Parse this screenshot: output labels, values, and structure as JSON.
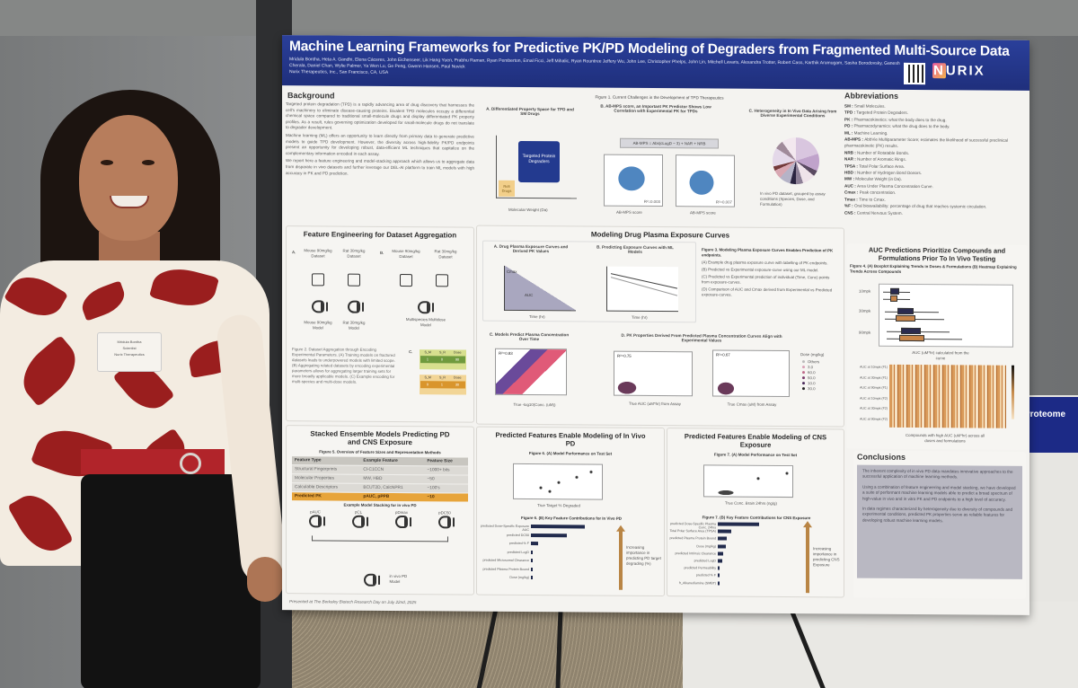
{
  "scene": {
    "description": "Presenter standing next to a scientific research poster at a poster session",
    "name_badge": {
      "line1": "Mridula Bontha",
      "line2": "Scientist",
      "line3": "Nurix Therapeutics"
    },
    "adjacent_poster": {
      "banner_text": "Proteome"
    }
  },
  "poster": {
    "title": "Machine Learning Frameworks for Predictive PK/PD Modeling of Degraders from Fragmented Multi-Source Data",
    "authors": "Mridula Bontha, Heta A. Gandhi, Elena Cáceres, John Eichenseer, Lik Hang Yuen, Prabhu Raman, Ryan Pemberton, Emal Ficci, Jeff Mihalic, Ryan Rountree Jeffery Wu, John Lee, Christopher Phelps, John Lin, Mitchell Lavaris, Alexandra Trotter, Robert Cass, Karthik Arumugam, Sasha Borodovsky, Ganesh Cherala, Daniel Chan, Wylie Palmer, Ya Wen Lu, Ge Peng, Gwenn Hansen, Paul Novick",
    "affiliation": "Nurix Therapeutics, Inc., San Francisco, CA, USA",
    "logo": {
      "mark": "N",
      "rest": "URIX"
    },
    "footer": "Presented at The Berkeley Biotech Research Day on July 22nd, 2025",
    "background": {
      "heading": "Background",
      "paragraphs": [
        "Targeted protein degradation (TPD) is a rapidly advancing area of drug discovery that harnesses the cell's machinery to eliminate disease-causing proteins. Bivalent TPD molecules occupy a differential chemical space compared to traditional small-molecule drugs and display differentiated PK property profiles. As a result, rules governing optimization developed for small-molecule drugs do not translate to degrader development.",
        "Machine learning (ML) offers an opportunity to learn directly from primary data to generate predictive models to guide TPD development. However, the diversity across high-fidelity PK/PD endpoints present an opportunity for developing robust, data-efficient ML techniques that capitalize on the complementary information encoded in each assay.",
        "We report here a feature engineering and model-stacking approach which allows us to aggregate data from disparate in vivo datasets and further leverage our DEL-AI platform to train ML models with high accuracy in PK and PD prediction."
      ]
    },
    "figure1": {
      "caption": "Figure 1. Current Challenges in the Development of TPD Therapeutics",
      "panel_a": {
        "title": "A. Differentiated Property Space for TPD and SM Drugs",
        "box_tpd": "Targeted Protein Degraders",
        "box_ro5": "Ro5 Drugs",
        "xlabel": "Molecular Weight (Da)",
        "ylabel": "Polar Surface Area (Å²)",
        "xticks": [
          "0",
          "500",
          "1000",
          "1500"
        ],
        "yticks": [
          "100",
          "200",
          "300",
          "400"
        ]
      },
      "panel_b": {
        "title": "B. AB-MPS score, an Important PK Predictor Shows Low Correlation with Experimental PK for TPDs",
        "formula": "AB-MPS = Abs(cLogD − 3) + NAR + NRB",
        "plot1": {
          "ylabel": "log10(Plasma AUC (uM*hr))",
          "xlabel": "AB-MPS score",
          "r2": "R²=0.003"
        },
        "plot2": {
          "ylabel": "log10(Plasma Cmax (uM))",
          "xlabel": "AB-MPS score",
          "r2": "R²=0.007"
        },
        "xticks": [
          "10",
          "15",
          "20",
          "25",
          "30",
          "35"
        ]
      },
      "panel_c": {
        "title": "C. Heterogeneity in In Vivo Data Arising from Diverse Experimental Conditions",
        "note": "In vivo PD dataset, grouped by assay conditions (Species, Dose, and Formulation)"
      }
    },
    "abbreviations": {
      "heading": "Abbreviations",
      "items": [
        {
          "k": "SM",
          "v": "Small Molecules."
        },
        {
          "k": "TPD",
          "v": "Targeted Protein Degraders."
        },
        {
          "k": "PK",
          "v": "Pharmacokinetics: what the body does to the drug."
        },
        {
          "k": "PD",
          "v": "Pharmacodynamics: what the drug does to the body."
        },
        {
          "k": "ML",
          "v": "Machine Learning."
        },
        {
          "k": "AB-MPS",
          "v": "AbbVie Multiparameter Score; estimates the likelihood of successful preclinical pharmacokinetic (PK) results."
        },
        {
          "k": "NRB",
          "v": "Number of Rotatable Bonds."
        },
        {
          "k": "NAR",
          "v": "Number of Aromatic Rings."
        },
        {
          "k": "TPSA",
          "v": "Total Polar Surface Area."
        },
        {
          "k": "HBD",
          "v": "Number of Hydrogen Bond Donors."
        },
        {
          "k": "MW",
          "v": "Molecular Weight (in Da)."
        },
        {
          "k": "AUC",
          "v": "Area Under Plasma Concentration Curve."
        },
        {
          "k": "Cmax",
          "v": "Peak concentration."
        },
        {
          "k": "Tmax",
          "v": "Time to Cmax."
        },
        {
          "k": "%F",
          "v": "Oral bioavailability: percentage of drug that reaches systemic circulation."
        },
        {
          "k": "CNS",
          "v": "Central Nervous System."
        }
      ]
    },
    "feature_engineering": {
      "heading": "Feature Engineering for Dataset Aggregation",
      "panel_a_label": "A.",
      "panel_b_label": "B.",
      "panel_c_label": "C.",
      "datasets": [
        "Mouse 90mg/kg Dataset",
        "Rat 30mg/kg Dataset",
        "Mouse 90mg/kg Dataset",
        "Rat 30mg/kg Dataset"
      ],
      "models": [
        "Mouse 90mg/kg Model",
        "Rat 30mg/kg Model",
        "Multispecies Multidose Model"
      ],
      "encoding_headers": [
        "S_M",
        "S_R",
        "Dose"
      ],
      "encoding_rows": [
        [
          "1",
          "0",
          "90"
        ],
        [
          "0",
          "1",
          "30"
        ]
      ],
      "caption": "Figure 2. Dataset Aggregation through Encoding Experimental Parameters. (A) Training models on fractured datasets leads to underpowered models with limited scope. (B) Aggregating related datasets by encoding experimental parameters allows for aggregating larger training sets for more broadly applicable models. (C) Example encoding for multi-species and multi-dose models."
    },
    "plasma": {
      "heading": "Modeling Drug Plasma Exposure Curves",
      "panel_a": {
        "title": "A. Drug Plasma Exposure Curves and Derived PK Values",
        "ylabel": "Conc. of compound in Plasma (uM)",
        "xlabel": "Time (hr)",
        "auc_label": "AUC",
        "cmax_label": "Cmax",
        "tmax_label": "Tmax",
        "xticks": [
          "2",
          "6",
          "24"
        ]
      },
      "panel_b": {
        "title": "B. Predicting Exposure Curves with ML Models",
        "ylabel": "Concentration (uM)",
        "xlabel": "Time (hr)",
        "legend": [
          "Predicted",
          "True"
        ],
        "xticks": [
          "2",
          "6",
          "24"
        ]
      },
      "caption_title": "Figure 3. Modeling Plasma Exposure Curves Enables Prediction of PK endpoints.",
      "caption_items": [
        "(A) Example drug plasma exposure curve with labelling of PK endpoints.",
        "(B) Predicted vs Experimental exposure-curve using our ML model.",
        "(C) Predicted vs Experimental prediction of individual (Time, Conc) points from exposure-curves.",
        "(D) Comparison of AUC and Cmax derived from Experimental vs Predicted exposure-curves."
      ],
      "panel_c": {
        "title": "C. Models Predict Plasma Concentration Over Time",
        "r2": "R²=0.83",
        "xlabel": "True -log10(Conc. (uM))",
        "ylabel": "Predicted -log10(Conc. (uM))",
        "xticks": [
          "5",
          "6",
          "7",
          "8",
          "9"
        ]
      },
      "panel_d": {
        "title": "D. PK Properties Derived From Predicted Plasma Concentration Curves Align with Experimental Values",
        "plot1": {
          "r2": "R²=0.75",
          "xlabel": "True AUC (uM*hr) from Assay",
          "ylabel": "Calculated AUC (uM*hr) from predicted curve",
          "xticks": [
            "0",
            "50",
            "100",
            "150",
            "200",
            "250"
          ]
        },
        "plot2": {
          "r2": "R²=0.67",
          "xlabel": "True Cmax (uM) from Assay",
          "ylabel": "Calculated Cmax (uM) from predicted curve",
          "xticks": [
            "0",
            "2",
            "4",
            "6",
            "8",
            "10",
            "12"
          ]
        },
        "legend_title": "Dose (mg/kg)",
        "legend": [
          "Others",
          "3.0",
          "60.0",
          "50.0",
          "10.0",
          "30.0"
        ]
      }
    },
    "stacked": {
      "heading": "Stacked Ensemble Models Predicting PD and CNS Exposure",
      "table_caption": "Figure 5. Overview of Feature Sizes and Representation Methods",
      "headers": [
        "Feature Type",
        "Example Feature",
        "Feature Size"
      ],
      "rows": [
        [
          "Structural Fingerprints",
          "Cl-C1CCN",
          "~1000+ bits"
        ],
        [
          "Molecular Properties",
          "MW, HBD",
          "~50"
        ],
        [
          "Calculable Descriptors",
          "BCUT2D, CalcNPR1",
          "~100's"
        ],
        [
          "Predicted PK",
          "pAUC, pPPB",
          "~10"
        ]
      ],
      "stacking_title": "Example Model Stacking for in vivo PD",
      "base_models": [
        "pAUC",
        "pCL",
        "pDmax",
        "pDC50"
      ],
      "final_model": "in vivo PD Model"
    },
    "pd": {
      "heading": "Predicted Features Enable Modeling of In Vivo PD",
      "fig_a": "Figure 6. (A) Model Performance on Test Set",
      "fig_a_xlabel": "True Target % Degraded",
      "fig_a_ylabel": "Predicted Target % Degraded",
      "fig_b": "Figure 6. (B) Key Feature Contributions for In Vivo PD",
      "bars": [
        {
          "label": "predicted Dose-Specific Exposure AUC",
          "value": 0.75
        },
        {
          "label": "predicted DC50",
          "value": 0.5
        },
        {
          "label": "predicted % F",
          "value": 0.1
        },
        {
          "label": "predicted LogD",
          "value": 0.02
        },
        {
          "label": "predicted Microsomal Clearance",
          "value": 0.015
        },
        {
          "label": "predicted Plasma Protein Bound",
          "value": 0.012
        },
        {
          "label": "Dose (mg/kg)",
          "value": 0.01
        }
      ],
      "bar_xlabel": "Increase in Target Degradation (%)",
      "arrow_note": "Increasing importance in predicting PD target degrading (%)"
    },
    "cns": {
      "heading": "Predicted Features Enable Modeling of CNS Exposure",
      "fig_a": "Figure 7. (A) Model Performance on Test Set",
      "fig_a_xlabel": "True Conc. Brain 24hrs (ng/g)",
      "fig_a_ylabel": "Predicted Conc. Brain 24hrs (ng/g)",
      "fig_a_xticks": [
        "0",
        "1000",
        "2000",
        "3000",
        "4000"
      ],
      "fig_b": "Figure 7. (B) Key Feature Contributions for CNS Exposure",
      "bars": [
        {
          "label": "predicted Dose-Specific Plasma Conc. 24hrs",
          "value": 0.9
        },
        {
          "label": "Total Polar Surface Area (TPSA)",
          "value": 0.3
        },
        {
          "label": "predicted Plasma Protein Bound",
          "value": 0.2
        },
        {
          "label": "Dose (mg/kg)",
          "value": 0.18
        },
        {
          "label": "predicted Intrinsic Clearance",
          "value": 0.12
        },
        {
          "label": "predicted LogD",
          "value": 0.1
        },
        {
          "label": "predicted Permeability",
          "value": 0.04
        },
        {
          "label": "predicted % F",
          "value": 0.03
        },
        {
          "label": "fr_Alkanediamine (SMBT)",
          "value": 0.005
        }
      ],
      "arrow_note": "Increasing importance in predicting CNS Exposure"
    },
    "auc": {
      "heading": "AUC Predictions Prioritize Compounds and Formulations Prior To In Vivo Testing",
      "caption": "Figure 4. (A) Boxplot Explaining Trends in Doses & Formulations (B) Heatmap Explaining Trends Across Compounds",
      "box_ylabels": [
        "10mpk",
        "30mpk",
        "90mpk"
      ],
      "box_xlabel": "AUC (uM*hr) calculated from the curve",
      "box_xticks": [
        "0",
        "10",
        "20",
        "30",
        "40"
      ],
      "heat_rows": [
        "AUC at 10mpk (F1)",
        "AUC at 30mpk (F1)",
        "AUC at 90mpk (F1)",
        "AUC at 10mpk (F2)",
        "AUC at 30mpk (F2)",
        "AUC at 90mpk (F2)"
      ],
      "heat_note": "Compounds with high AUC (uM*hr) across all doses and formulations"
    },
    "conclusions": {
      "heading": "Conclusions",
      "items": [
        "The inherent complexity of in vivo PD data mandates innovative approaches to the successful application of machine learning methods.",
        "Using a combination of feature engineering and model stacking, we have developed a suite of performant machine learning models able to predict a broad spectrum of high-value in vivo and in vitro PK and PD endpoints to a high level of accuracy.",
        "In data regimes characterized by heterogeneity due to diversity of compounds and experimental conditions, predicted PK properties serve as reliable features for developing robust machine learning models."
      ]
    }
  }
}
